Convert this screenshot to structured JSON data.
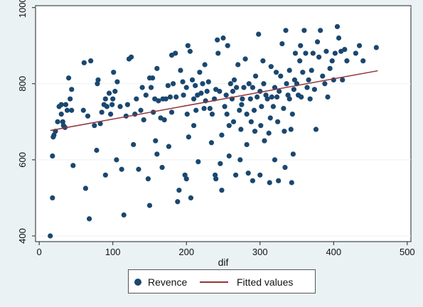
{
  "colors": {
    "background": "#eaf2f3",
    "plot_bg": "#ffffff",
    "grid": "#eaf2f3",
    "scatter": "#1a476f",
    "fit_line": "#90353b"
  },
  "chart_data": {
    "type": "scatter",
    "xlabel": "dif",
    "ylabel": "",
    "xlim": [
      -5,
      505
    ],
    "ylim": [
      385,
      1005
    ],
    "xticks": [
      0,
      100,
      200,
      300,
      400,
      500
    ],
    "yticks": [
      400,
      600,
      800,
      1000
    ],
    "grid": true,
    "legend": {
      "position": "bottom-center",
      "entries": [
        "Revence",
        "Fitted values"
      ]
    },
    "series": [
      {
        "name": "Revence",
        "kind": "scatter",
        "points": [
          [
            15,
            400
          ],
          [
            18,
            500
          ],
          [
            18,
            610
          ],
          [
            19,
            660
          ],
          [
            20,
            665
          ],
          [
            22,
            675
          ],
          [
            25,
            700
          ],
          [
            27,
            740
          ],
          [
            30,
            745
          ],
          [
            30,
            720
          ],
          [
            32,
            700
          ],
          [
            33,
            690
          ],
          [
            35,
            685
          ],
          [
            36,
            745
          ],
          [
            38,
            730
          ],
          [
            40,
            815
          ],
          [
            42,
            760
          ],
          [
            44,
            785
          ],
          [
            44,
            730
          ],
          [
            46,
            585
          ],
          [
            60,
            730
          ],
          [
            61,
            855
          ],
          [
            63,
            525
          ],
          [
            66,
            715
          ],
          [
            68,
            445
          ],
          [
            70,
            860
          ],
          [
            75,
            690
          ],
          [
            78,
            625
          ],
          [
            79,
            800
          ],
          [
            80,
            810
          ],
          [
            83,
            695
          ],
          [
            85,
            725
          ],
          [
            88,
            745
          ],
          [
            90,
            560
          ],
          [
            90,
            760
          ],
          [
            92,
            740
          ],
          [
            95,
            775
          ],
          [
            97,
            720
          ],
          [
            99,
            745
          ],
          [
            100,
            760
          ],
          [
            101,
            830
          ],
          [
            103,
            780
          ],
          [
            105,
            600
          ],
          [
            106,
            805
          ],
          [
            110,
            740
          ],
          [
            112,
            575
          ],
          [
            115,
            455
          ],
          [
            118,
            715
          ],
          [
            120,
            745
          ],
          [
            122,
            865
          ],
          [
            125,
            870
          ],
          [
            128,
            640
          ],
          [
            130,
            720
          ],
          [
            132,
            760
          ],
          [
            135,
            575
          ],
          [
            138,
            730
          ],
          [
            140,
            790
          ],
          [
            142,
            705
          ],
          [
            145,
            770
          ],
          [
            148,
            550
          ],
          [
            150,
            480
          ],
          [
            150,
            815
          ],
          [
            152,
            790
          ],
          [
            154,
            815
          ],
          [
            155,
            725
          ],
          [
            157,
            760
          ],
          [
            158,
            650
          ],
          [
            160,
            615
          ],
          [
            160,
            840
          ],
          [
            162,
            755
          ],
          [
            165,
            710
          ],
          [
            167,
            580
          ],
          [
            168,
            760
          ],
          [
            170,
            705
          ],
          [
            172,
            760
          ],
          [
            175,
            795
          ],
          [
            176,
            635
          ],
          [
            178,
            765
          ],
          [
            180,
            875
          ],
          [
            180,
            725
          ],
          [
            182,
            800
          ],
          [
            185,
            880
          ],
          [
            186,
            765
          ],
          [
            188,
            490
          ],
          [
            190,
            520
          ],
          [
            192,
            835
          ],
          [
            195,
            805
          ],
          [
            196,
            770
          ],
          [
            198,
            560
          ],
          [
            200,
            550
          ],
          [
            200,
            790
          ],
          [
            201,
            720
          ],
          [
            202,
            900
          ],
          [
            203,
            660
          ],
          [
            205,
            885
          ],
          [
            206,
            500
          ],
          [
            208,
            810
          ],
          [
            210,
            690
          ],
          [
            210,
            760
          ],
          [
            212,
            795
          ],
          [
            213,
            730
          ],
          [
            215,
            770
          ],
          [
            216,
            595
          ],
          [
            218,
            830
          ],
          [
            220,
            775
          ],
          [
            222,
            800
          ],
          [
            224,
            735
          ],
          [
            225,
            850
          ],
          [
            226,
            755
          ],
          [
            228,
            780
          ],
          [
            230,
            805
          ],
          [
            232,
            735
          ],
          [
            234,
            645
          ],
          [
            235,
            720
          ],
          [
            238,
            760
          ],
          [
            239,
            560
          ],
          [
            240,
            550
          ],
          [
            240,
            785
          ],
          [
            242,
            915
          ],
          [
            243,
            880
          ],
          [
            245,
            780
          ],
          [
            246,
            590
          ],
          [
            248,
            665
          ],
          [
            248,
            520
          ],
          [
            250,
            920
          ],
          [
            252,
            740
          ],
          [
            254,
            770
          ],
          [
            255,
            720
          ],
          [
            256,
            900
          ],
          [
            258,
            610
          ],
          [
            258,
            690
          ],
          [
            260,
            800
          ],
          [
            262,
            760
          ],
          [
            263,
            780
          ],
          [
            264,
            700
          ],
          [
            265,
            810
          ],
          [
            267,
            560
          ],
          [
            268,
            790
          ],
          [
            270,
            850
          ],
          [
            272,
            730
          ],
          [
            273,
            600
          ],
          [
            274,
            680
          ],
          [
            275,
            745
          ],
          [
            276,
            760
          ],
          [
            278,
            790
          ],
          [
            280,
            865
          ],
          [
            282,
            720
          ],
          [
            282,
            640
          ],
          [
            284,
            565
          ],
          [
            285,
            800
          ],
          [
            287,
            760
          ],
          [
            288,
            700
          ],
          [
            290,
            790
          ],
          [
            290,
            545
          ],
          [
            292,
            730
          ],
          [
            293,
            675
          ],
          [
            294,
            820
          ],
          [
            296,
            765
          ],
          [
            298,
            930
          ],
          [
            300,
            560
          ],
          [
            300,
            780
          ],
          [
            301,
            690
          ],
          [
            302,
            740
          ],
          [
            304,
            860
          ],
          [
            305,
            800
          ],
          [
            306,
            650
          ],
          [
            308,
            770
          ],
          [
            310,
            760
          ],
          [
            312,
            670
          ],
          [
            313,
            540
          ],
          [
            314,
            710
          ],
          [
            315,
            845
          ],
          [
            316,
            765
          ],
          [
            318,
            740
          ],
          [
            320,
            790
          ],
          [
            320,
            600
          ],
          [
            322,
            830
          ],
          [
            323,
            765
          ],
          [
            324,
            700
          ],
          [
            325,
            545
          ],
          [
            326,
            780
          ],
          [
            328,
            820
          ],
          [
            330,
            905
          ],
          [
            332,
            735
          ],
          [
            333,
            675
          ],
          [
            334,
            580
          ],
          [
            335,
            940
          ],
          [
            336,
            800
          ],
          [
            338,
            770
          ],
          [
            340,
            835
          ],
          [
            340,
            760
          ],
          [
            342,
            680
          ],
          [
            343,
            540
          ],
          [
            344,
            720
          ],
          [
            345,
            615
          ],
          [
            346,
            785
          ],
          [
            347,
            810
          ],
          [
            348,
            880
          ],
          [
            350,
            800
          ],
          [
            352,
            770
          ],
          [
            354,
            860
          ],
          [
            355,
            900
          ],
          [
            356,
            765
          ],
          [
            358,
            830
          ],
          [
            360,
            940
          ],
          [
            362,
            880
          ],
          [
            364,
            790
          ],
          [
            366,
            810
          ],
          [
            368,
            760
          ],
          [
            370,
            835
          ],
          [
            372,
            880
          ],
          [
            374,
            785
          ],
          [
            376,
            680
          ],
          [
            378,
            910
          ],
          [
            380,
            870
          ],
          [
            382,
            940
          ],
          [
            385,
            820
          ],
          [
            388,
            800
          ],
          [
            390,
            885
          ],
          [
            392,
            765
          ],
          [
            395,
            840
          ],
          [
            398,
            860
          ],
          [
            400,
            810
          ],
          [
            402,
            880
          ],
          [
            405,
            950
          ],
          [
            407,
            920
          ],
          [
            410,
            885
          ],
          [
            412,
            810
          ],
          [
            415,
            890
          ],
          [
            418,
            860
          ],
          [
            430,
            880
          ],
          [
            435,
            900
          ],
          [
            440,
            860
          ],
          [
            458,
            895
          ]
        ]
      },
      {
        "name": "Fitted values",
        "kind": "line",
        "x": [
          15,
          460
        ],
        "y": [
          677,
          834
        ]
      }
    ]
  }
}
